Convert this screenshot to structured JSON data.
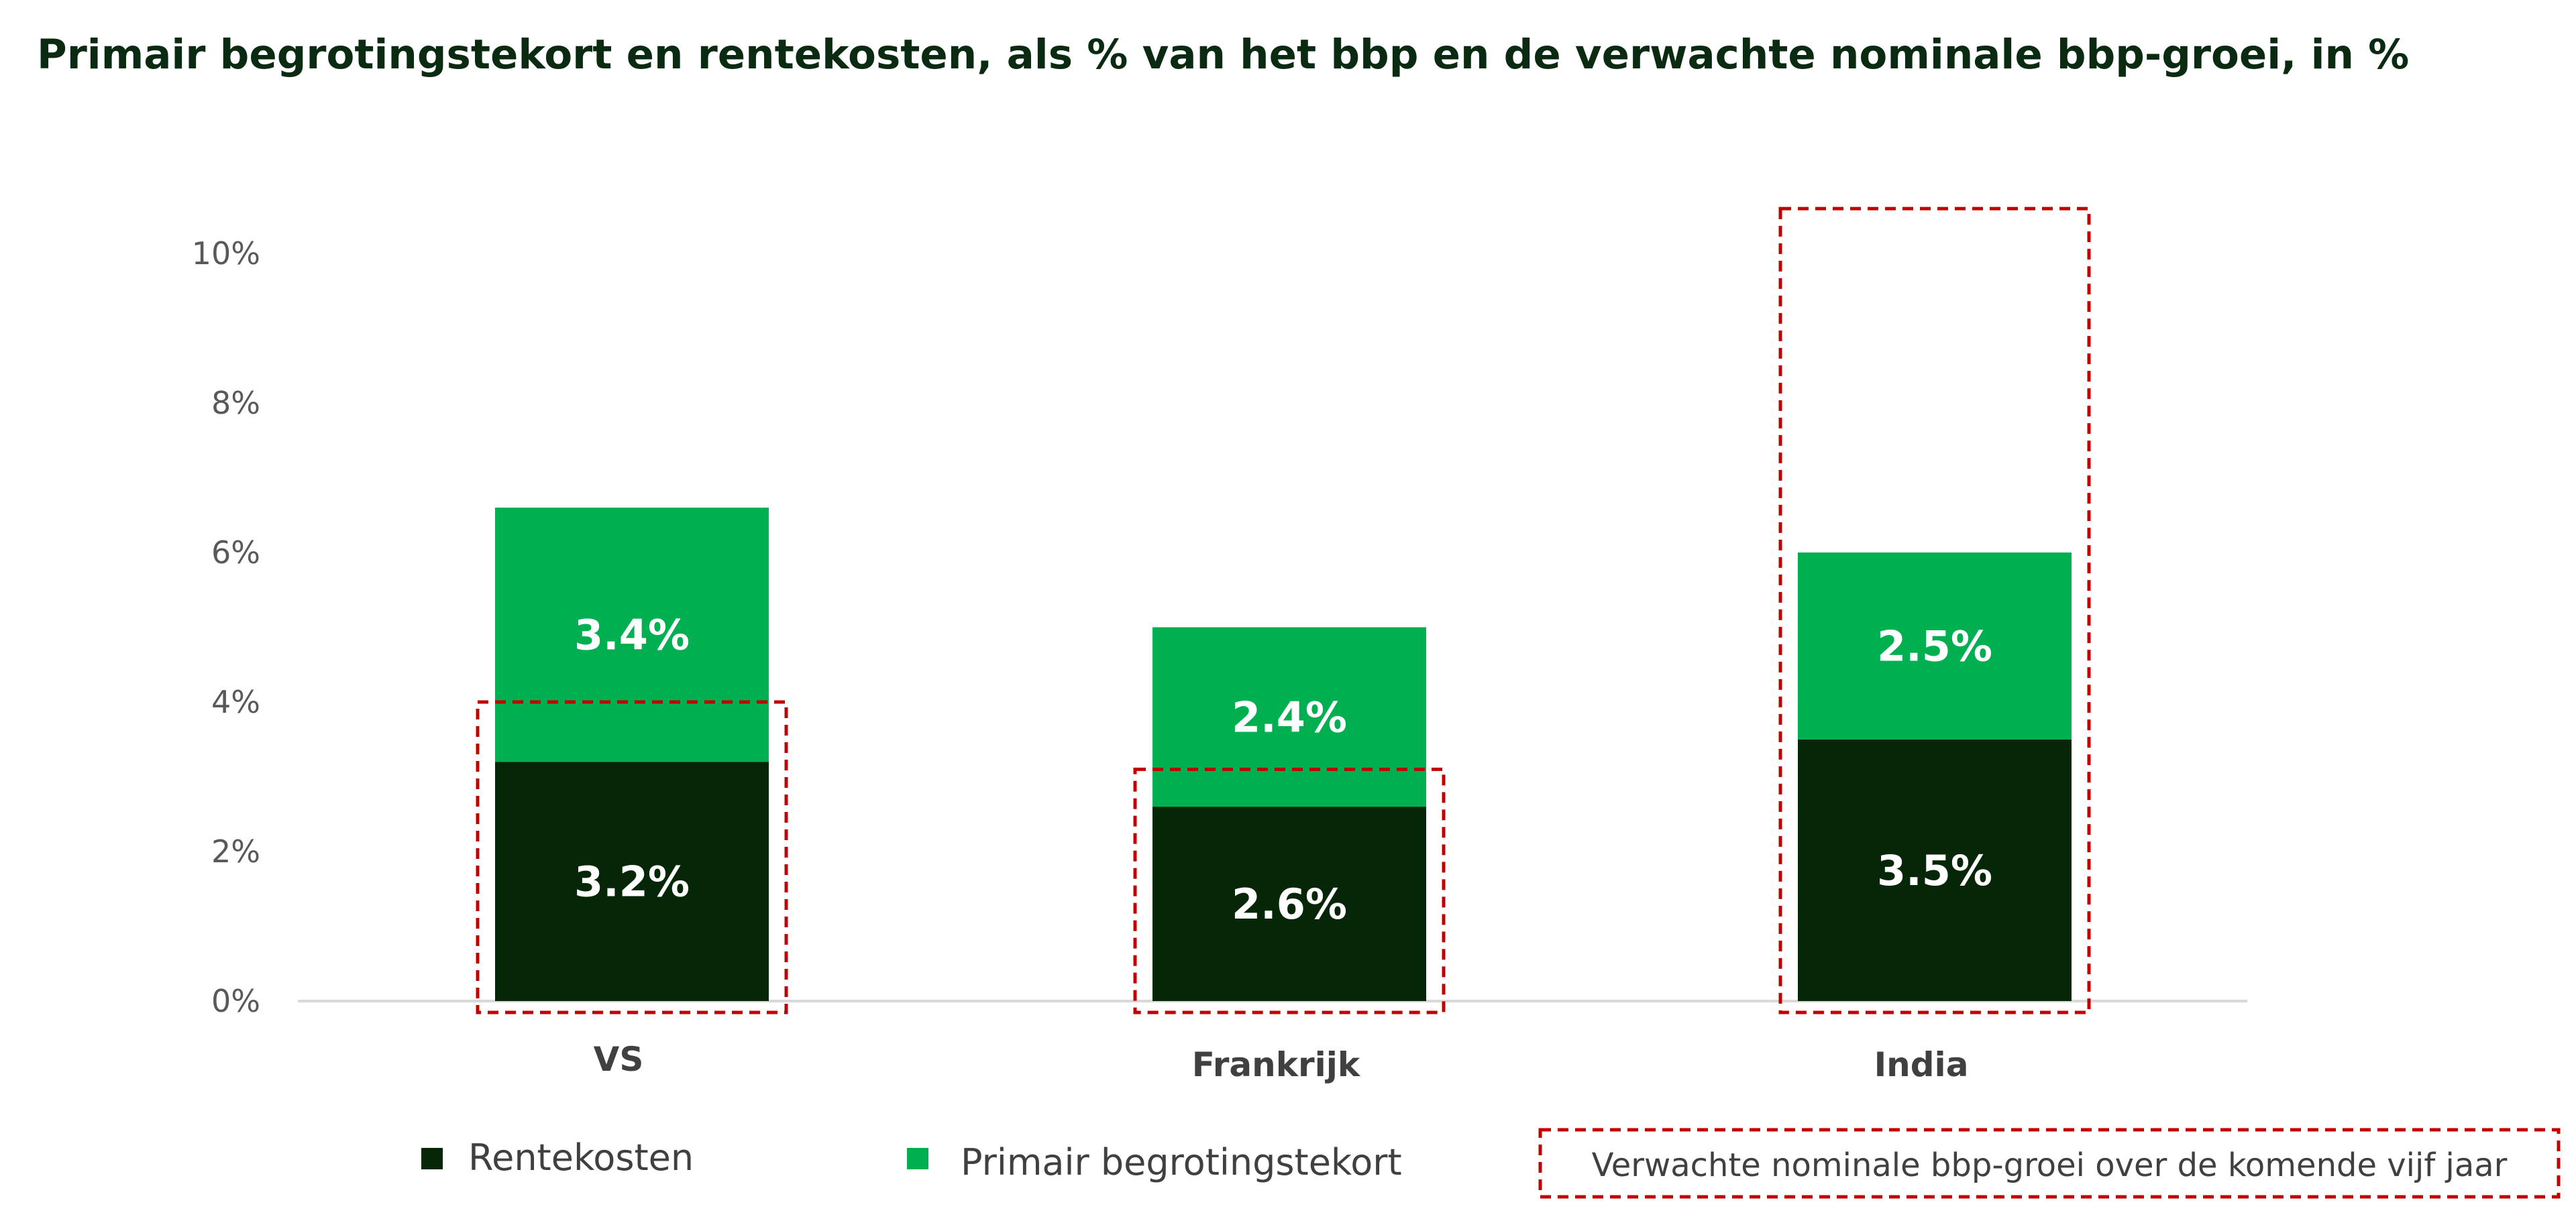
{
  "chart_data": {
    "type": "bar",
    "stacked": true,
    "title": "Primair begrotingstekort en rentekosten, als % van het bbp en de verwachte nominale bbp-groei, in %",
    "categories": [
      "VS",
      "Frankrijk",
      "India"
    ],
    "series": [
      {
        "name": "Rentekosten",
        "values": [
          3.2,
          2.6,
          3.5
        ],
        "labels": [
          "3.2%",
          "2.6%",
          "3.5%"
        ],
        "color": "#052607"
      },
      {
        "name": "Primair begrotingstekort",
        "values": [
          3.4,
          2.4,
          2.5
        ],
        "labels": [
          "3.4%",
          "2.4%",
          "2.5%"
        ],
        "color": "#00b050"
      }
    ],
    "overlay": {
      "name": "Verwachte nominale bbp-groei over de komende vijf jaar",
      "values": [
        4.0,
        3.1,
        10.6
      ],
      "color": "#c00000",
      "style": "dashed-box"
    },
    "yticks": [
      "0%",
      "2%",
      "4%",
      "6%",
      "8%",
      "10%"
    ],
    "ytick_values": [
      0,
      2,
      4,
      6,
      8,
      10
    ],
    "ylim": [
      0,
      10.6
    ],
    "xlabel": "",
    "ylabel": "",
    "legend": "bottom",
    "grid": false
  }
}
